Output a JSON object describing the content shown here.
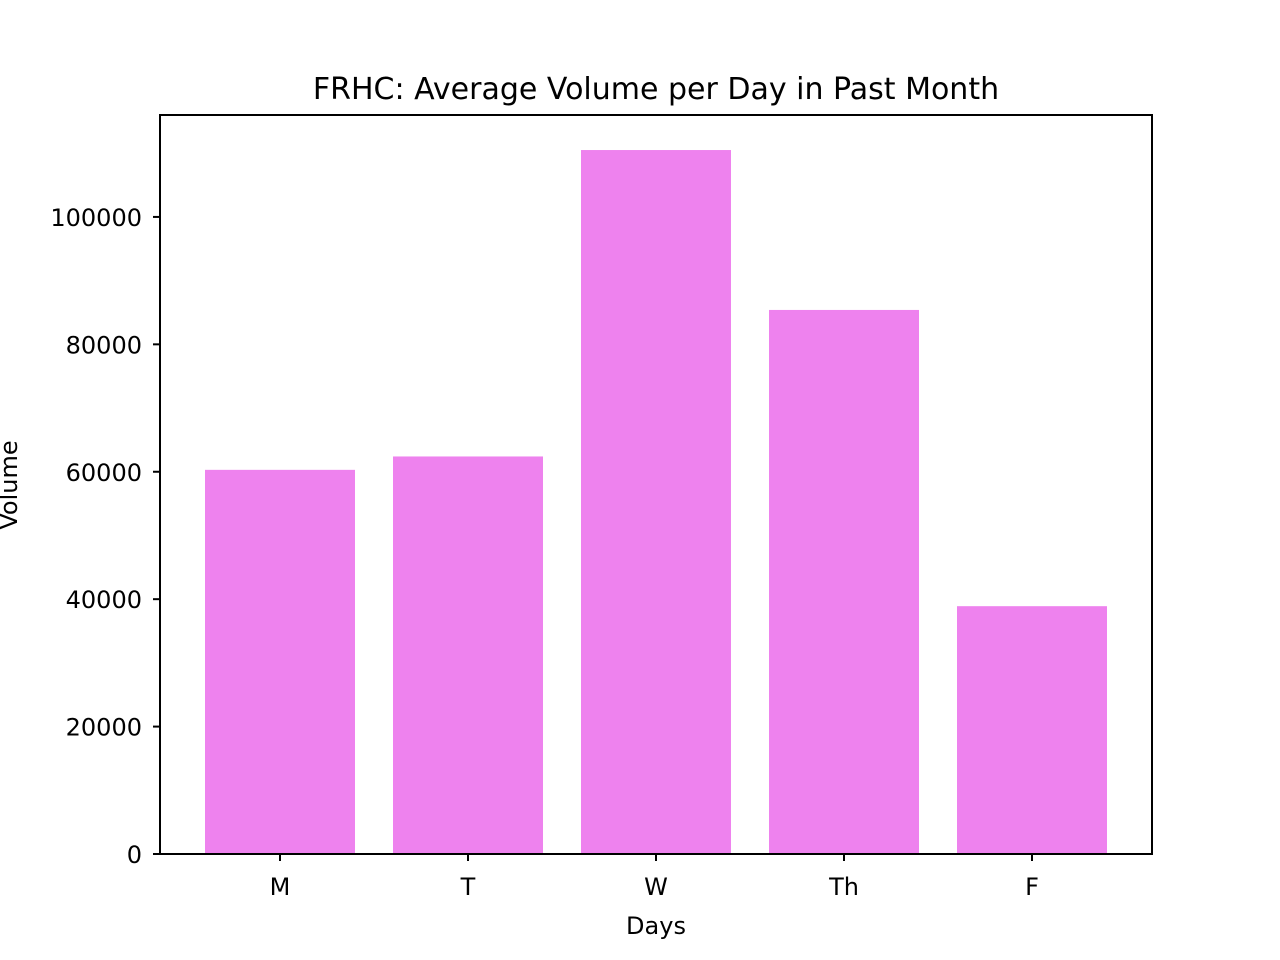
{
  "chart_data": {
    "type": "bar",
    "title": "FRHC: Average Volume per Day in Past Month",
    "xlabel": "Days",
    "ylabel": "Volume",
    "categories": [
      "M",
      "T",
      "W",
      "Th",
      "F"
    ],
    "values": [
      60300,
      62400,
      110500,
      85400,
      38900
    ],
    "ylim": [
      0,
      116000
    ],
    "yticks": [
      0,
      20000,
      40000,
      60000,
      80000,
      100000
    ],
    "ytick_labels": [
      "0",
      "20000",
      "40000",
      "60000",
      "80000",
      "100000"
    ],
    "grid": false,
    "legend": "none",
    "bar_color": "#ee82ee"
  }
}
